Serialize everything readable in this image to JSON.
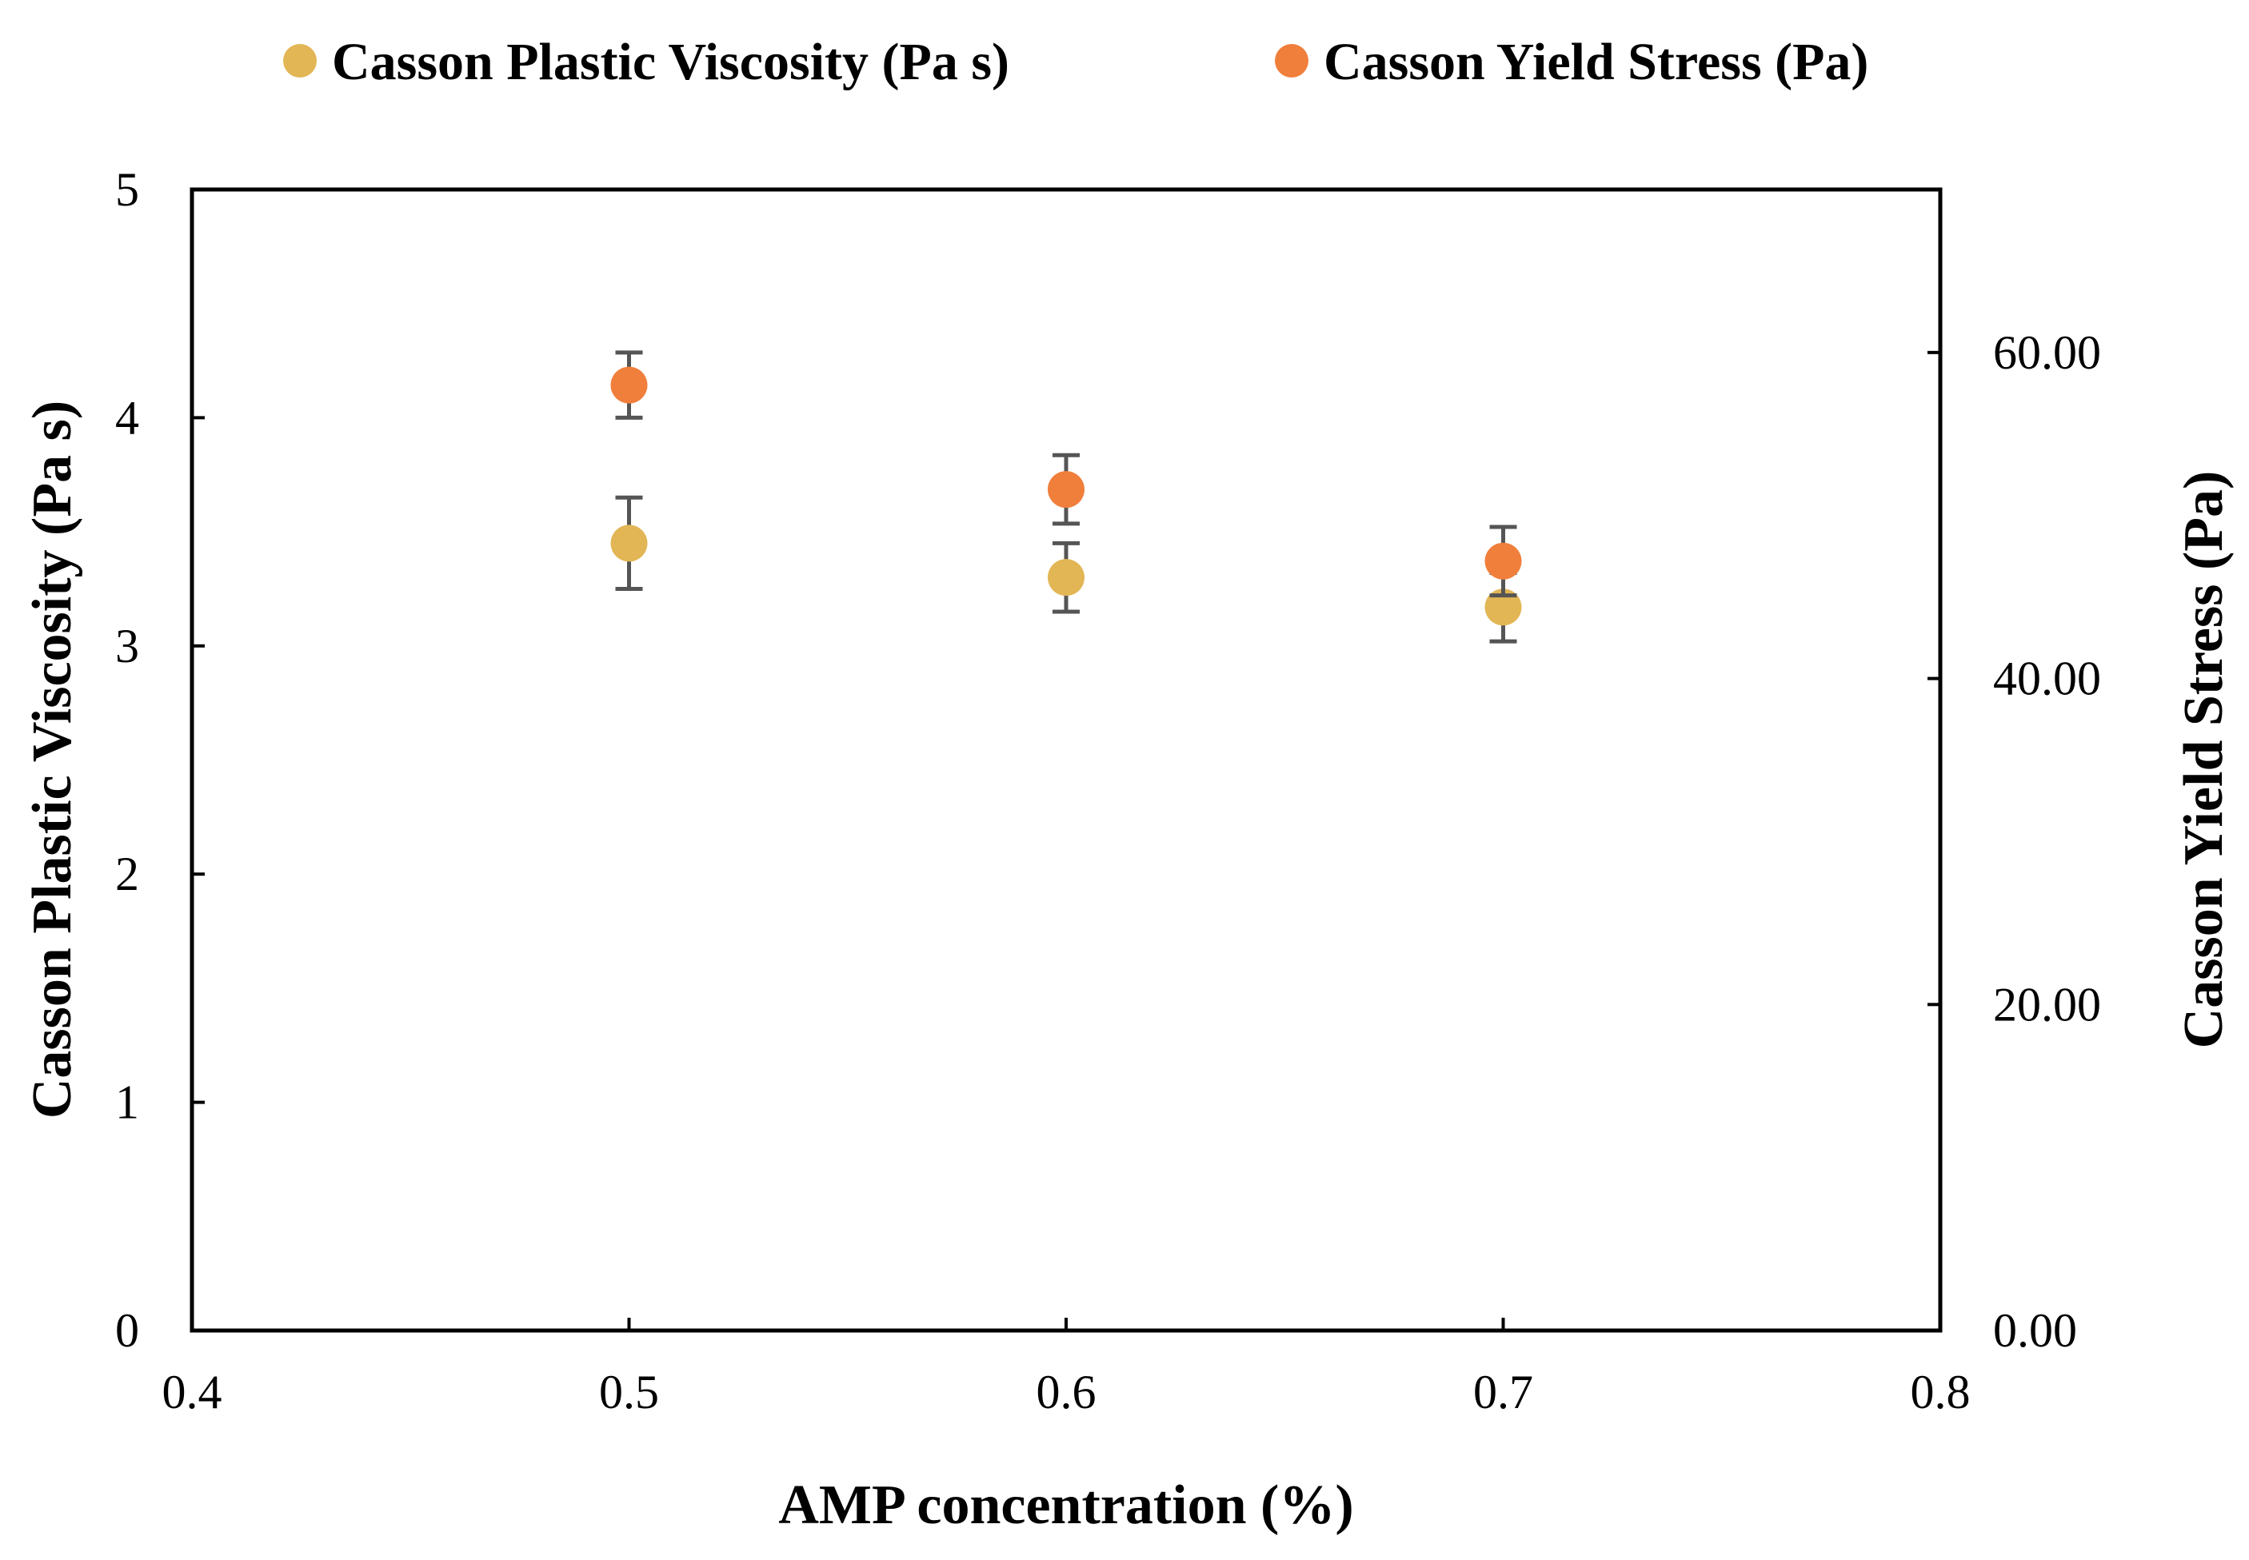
{
  "chart_data": {
    "type": "scatter",
    "xlabel": "AMP concentration (%)",
    "ylabel": "Casson Plastic Viscosity (Pa s)",
    "y2label": "Casson Yield Stress (Pa)",
    "xlim": [
      0.4,
      0.8
    ],
    "ylim": [
      0,
      5
    ],
    "y2lim": [
      0,
      70
    ],
    "x_ticks": [
      {
        "value": 0.4,
        "label": "0.4"
      },
      {
        "value": 0.5,
        "label": "0.5"
      },
      {
        "value": 0.6,
        "label": "0.6"
      },
      {
        "value": 0.7,
        "label": "0.7"
      },
      {
        "value": 0.8,
        "label": "0.8"
      }
    ],
    "y_ticks": [
      {
        "value": 0,
        "label": "0"
      },
      {
        "value": 1,
        "label": "1"
      },
      {
        "value": 2,
        "label": "2"
      },
      {
        "value": 3,
        "label": "3"
      },
      {
        "value": 4,
        "label": "4"
      },
      {
        "value": 5,
        "label": "5"
      }
    ],
    "y2_ticks": [
      {
        "value": 0,
        "label": "0.00"
      },
      {
        "value": 20,
        "label": "20.00"
      },
      {
        "value": 40,
        "label": "40.00"
      },
      {
        "value": 60,
        "label": "60.00"
      }
    ],
    "legend_position": "top",
    "grid": false,
    "series": [
      {
        "name": "Casson Plastic Viscosity (Pa s)",
        "axis": "left",
        "color": "#E2B655",
        "x": [
          0.5,
          0.6,
          0.7
        ],
        "y": [
          3.45,
          3.3,
          3.17
        ],
        "error": [
          0.2,
          0.15,
          0.15
        ]
      },
      {
        "name": "Casson Yield Stress (Pa)",
        "axis": "right",
        "color": "#F07F3C",
        "x": [
          0.5,
          0.6,
          0.7
        ],
        "y": [
          58.0,
          51.6,
          47.2
        ],
        "error": [
          2.0,
          2.1,
          2.1
        ]
      }
    ]
  }
}
